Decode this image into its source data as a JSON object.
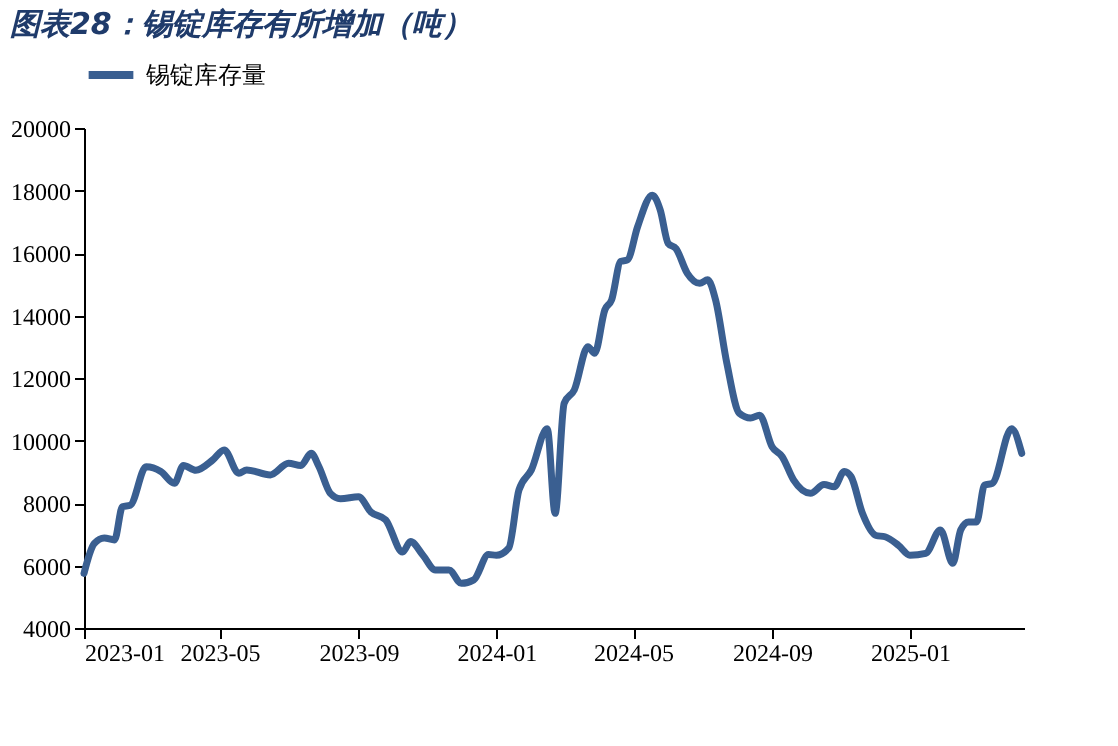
{
  "chart_data": {
    "type": "line",
    "title": "图表28：锡锭库存有所增加（吨）",
    "x": [
      "2023-01-01",
      "2023-01-10",
      "2023-01-19",
      "2023-01-28",
      "2023-02-04",
      "2023-02-11",
      "2023-02-25",
      "2023-03-10",
      "2023-03-22",
      "2023-03-30",
      "2023-04-10",
      "2023-04-25",
      "2023-05-05",
      "2023-05-18",
      "2023-05-25",
      "2023-06-15",
      "2023-07-01",
      "2023-07-12",
      "2023-07-21",
      "2023-07-28",
      "2023-08-07",
      "2023-08-16",
      "2023-09-01",
      "2023-09-12",
      "2023-09-25",
      "2023-10-10",
      "2023-10-17",
      "2023-10-28",
      "2023-11-08",
      "2023-11-20",
      "2023-12-01",
      "2023-12-12",
      "2023-12-25",
      "2024-01-01",
      "2024-01-12",
      "2024-01-21",
      "2024-02-01",
      "2024-02-15",
      "2024-02-22",
      "2024-03-01",
      "2024-03-10",
      "2024-03-22",
      "2024-03-28",
      "2024-04-06",
      "2024-04-12",
      "2024-04-20",
      "2024-04-26",
      "2024-05-05",
      "2024-05-18",
      "2024-05-25",
      "2024-06-01",
      "2024-06-08",
      "2024-06-18",
      "2024-06-29",
      "2024-07-06",
      "2024-07-13",
      "2024-07-23",
      "2024-08-03",
      "2024-08-13",
      "2024-08-21",
      "2024-09-01",
      "2024-09-10",
      "2024-09-20",
      "2024-10-05",
      "2024-10-17",
      "2024-10-26",
      "2024-11-04",
      "2024-11-10",
      "2024-11-20",
      "2024-12-02",
      "2024-12-10",
      "2024-12-22",
      "2025-01-01",
      "2025-01-15",
      "2025-01-28",
      "2025-02-08",
      "2025-02-15",
      "2025-02-22",
      "2025-03-01",
      "2025-03-08",
      "2025-03-15",
      "2025-04-01",
      "2025-04-10"
    ],
    "series": [
      {
        "name": "锡锭库存量",
        "color": "#3a5f91",
        "values": [
          5750,
          6700,
          6880,
          6820,
          7880,
          7930,
          9160,
          9010,
          8630,
          9200,
          9050,
          9380,
          9700,
          8950,
          9060,
          8900,
          9270,
          9200,
          9590,
          9160,
          8310,
          8140,
          8200,
          7710,
          7460,
          6430,
          6770,
          6330,
          5860,
          5860,
          5430,
          5540,
          6350,
          6330,
          6560,
          8420,
          9060,
          10380,
          7670,
          11190,
          11620,
          13000,
          12790,
          14180,
          14500,
          15730,
          15780,
          16840,
          17850,
          17380,
          16310,
          16140,
          15350,
          15030,
          15140,
          14500,
          12470,
          10870,
          10720,
          10810,
          9800,
          9480,
          8740,
          8310,
          8590,
          8520,
          9010,
          8840,
          7670,
          6960,
          6920,
          6640,
          6330,
          6390,
          7140,
          6070,
          7140,
          7390,
          7390,
          8570,
          8630,
          10380,
          9590
        ]
      }
    ],
    "xlim": [
      "2023-01-01",
      "2025-04-12"
    ],
    "xticks": [
      "2023-01",
      "2023-05",
      "2023-09",
      "2024-01",
      "2024-05",
      "2024-09",
      "2025-01"
    ],
    "ylim": [
      4000,
      20000
    ],
    "yticks": [
      4000,
      6000,
      8000,
      10000,
      12000,
      14000,
      16000,
      18000,
      20000
    ],
    "grid": false,
    "legend": "top",
    "line_style": "solid",
    "marker": "none"
  }
}
